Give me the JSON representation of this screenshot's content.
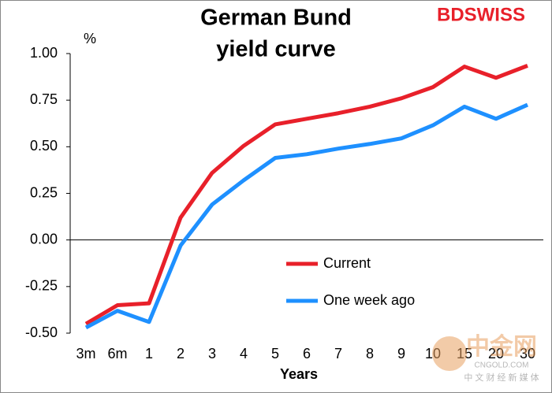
{
  "chart_data": {
    "type": "line",
    "title": [
      "German Bund",
      "yield curve"
    ],
    "brand": "BDSWISS",
    "y_label": "%",
    "x_label": "Years",
    "categories": [
      "3m",
      "6m",
      "1",
      "2",
      "3",
      "4",
      "5",
      "6",
      "7",
      "8",
      "9",
      "10",
      "15",
      "20",
      "30"
    ],
    "series": [
      {
        "name": "Current",
        "color": "#e8202a",
        "values": [
          -0.45,
          -0.35,
          -0.34,
          0.12,
          0.36,
          0.505,
          0.62,
          0.65,
          0.68,
          0.715,
          0.76,
          0.82,
          0.93,
          0.87,
          0.935
        ]
      },
      {
        "name": "One week ago",
        "color": "#1e90ff",
        "values": [
          -0.47,
          -0.38,
          -0.44,
          -0.03,
          0.19,
          0.32,
          0.44,
          0.46,
          0.49,
          0.515,
          0.545,
          0.615,
          0.715,
          0.65,
          0.725
        ]
      }
    ],
    "ylim": [
      -0.5,
      1.0
    ],
    "yticks": [
      {
        "value": -0.5,
        "label": "-0.50"
      },
      {
        "value": -0.25,
        "label": "-0.25"
      },
      {
        "value": 0,
        "label": "0.00"
      },
      {
        "value": 0.25,
        "label": "0.25"
      },
      {
        "value": 0.5,
        "label": "0.50"
      },
      {
        "value": 0.75,
        "label": "0.75"
      },
      {
        "value": 1.0,
        "label": "1.00"
      }
    ],
    "grid": false,
    "legend": "center",
    "watermark": [
      "中金网",
      "CNGOLD.COM",
      "中 文 财 经 新 媒 体"
    ]
  }
}
